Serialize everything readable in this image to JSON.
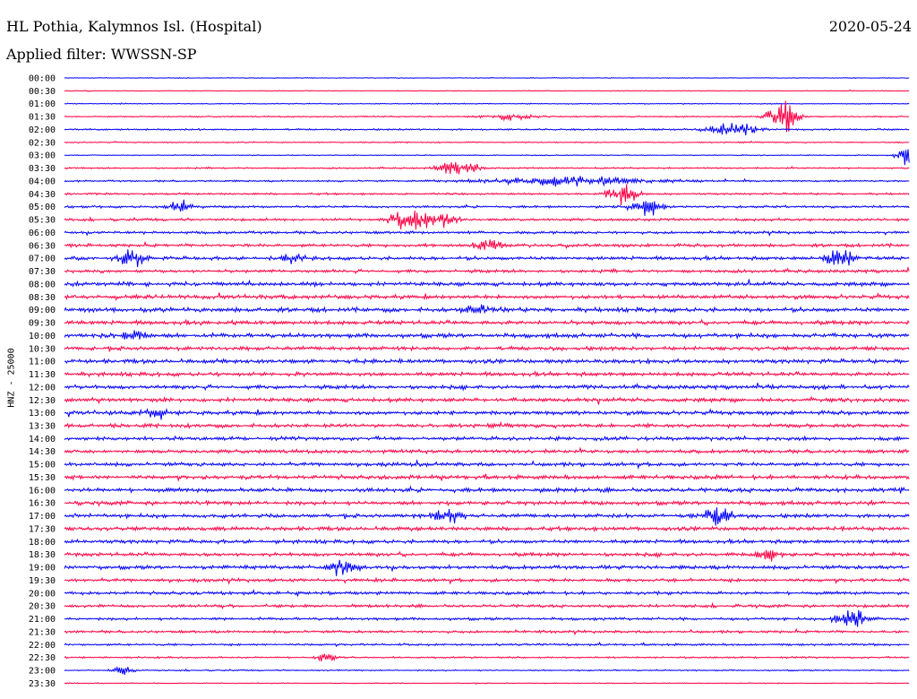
{
  "header": {
    "station": "HL Pothia, Kalymnos Isl. (Hospital)",
    "date": "2020-05-24",
    "filter": "Applied filter: WWSSN-SP"
  },
  "chart_data": {
    "type": "line",
    "title": "HL Pothia, Kalymnos Isl. (Hospital)",
    "ylabel": "HNZ - 25000",
    "colors": [
      "#0000ff",
      "#ff0044"
    ],
    "rows": [
      "00:00",
      "00:30",
      "01:00",
      "01:30",
      "02:00",
      "02:30",
      "03:00",
      "03:30",
      "04:00",
      "04:30",
      "05:00",
      "05:30",
      "06:00",
      "06:30",
      "07:00",
      "07:30",
      "08:00",
      "08:30",
      "09:00",
      "09:30",
      "10:00",
      "10:30",
      "11:00",
      "11:30",
      "12:00",
      "12:30",
      "13:00",
      "13:30",
      "14:00",
      "14:30",
      "15:00",
      "15:30",
      "16:00",
      "16:30",
      "17:00",
      "17:30",
      "18:00",
      "18:30",
      "19:00",
      "19:30",
      "20:00",
      "20:30",
      "21:00",
      "21:30",
      "22:00",
      "22:30",
      "23:00",
      "23:30"
    ],
    "noise_levels": [
      0.4,
      0.4,
      0.5,
      0.7,
      0.9,
      0.6,
      0.5,
      0.8,
      0.9,
      1.0,
      1.2,
      1.3,
      1.4,
      1.6,
      1.8,
      1.6,
      2.0,
      2.0,
      2.2,
      2.1,
      2.2,
      2.0,
      2.1,
      2.0,
      2.0,
      2.0,
      2.0,
      1.9,
      1.9,
      1.8,
      1.9,
      2.0,
      2.1,
      2.0,
      2.0,
      2.0,
      1.9,
      1.9,
      1.9,
      1.7,
      1.6,
      1.5,
      1.4,
      1.3,
      1.1,
      0.9,
      0.7,
      0.5
    ],
    "events": [
      {
        "row": 3,
        "frac": 0.85,
        "amp": 14,
        "width": 0.012
      },
      {
        "row": 4,
        "frac": 0.79,
        "amp": 7,
        "width": 0.02
      },
      {
        "row": 3,
        "frac": 0.53,
        "amp": 3,
        "width": 0.02
      },
      {
        "row": 6,
        "frac": 0.995,
        "amp": 10,
        "width": 0.008
      },
      {
        "row": 7,
        "frac": 0.455,
        "amp": 8,
        "width": 0.01
      },
      {
        "row": 7,
        "frac": 0.48,
        "amp": 5,
        "width": 0.008
      },
      {
        "row": 8,
        "frac": 0.6,
        "amp": 4,
        "width": 0.07
      },
      {
        "row": 9,
        "frac": 0.66,
        "amp": 9,
        "width": 0.012
      },
      {
        "row": 10,
        "frac": 0.69,
        "amp": 8,
        "width": 0.012
      },
      {
        "row": 10,
        "frac": 0.135,
        "amp": 6,
        "width": 0.01
      },
      {
        "row": 11,
        "frac": 0.405,
        "amp": 12,
        "width": 0.014
      },
      {
        "row": 11,
        "frac": 0.44,
        "amp": 7,
        "width": 0.015
      },
      {
        "row": 13,
        "frac": 0.5,
        "amp": 6,
        "width": 0.01
      },
      {
        "row": 14,
        "frac": 0.08,
        "amp": 8,
        "width": 0.01
      },
      {
        "row": 14,
        "frac": 0.915,
        "amp": 9,
        "width": 0.012
      },
      {
        "row": 14,
        "frac": 0.27,
        "amp": 4,
        "width": 0.01
      },
      {
        "row": 18,
        "frac": 0.49,
        "amp": 4,
        "width": 0.012
      },
      {
        "row": 20,
        "frac": 0.08,
        "amp": 7,
        "width": 0.01
      },
      {
        "row": 26,
        "frac": 0.11,
        "amp": 6,
        "width": 0.01
      },
      {
        "row": 34,
        "frac": 0.77,
        "amp": 8,
        "width": 0.012
      },
      {
        "row": 34,
        "frac": 0.45,
        "amp": 5,
        "width": 0.012
      },
      {
        "row": 37,
        "frac": 0.83,
        "amp": 6,
        "width": 0.01
      },
      {
        "row": 38,
        "frac": 0.33,
        "amp": 7,
        "width": 0.01
      },
      {
        "row": 42,
        "frac": 0.93,
        "amp": 8,
        "width": 0.012
      },
      {
        "row": 45,
        "frac": 0.31,
        "amp": 4,
        "width": 0.008
      },
      {
        "row": 46,
        "frac": 0.07,
        "amp": 4,
        "width": 0.008
      }
    ]
  }
}
